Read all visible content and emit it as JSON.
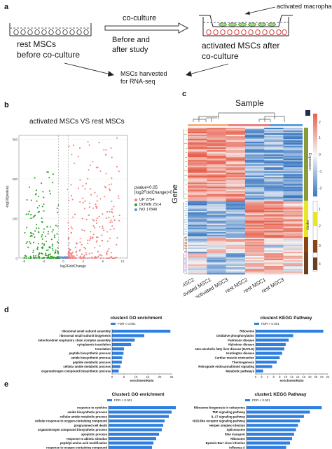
{
  "panels": {
    "a": {
      "letter": "a",
      "rest_label": "rest MSCs\nbefore co-culture",
      "coculture_label": "co-culture",
      "before_after": "Before and\nafter study",
      "activated_macrophages": "activated macrophages",
      "activated_label": "activated MSCs after\nco-culture",
      "harvested": "MSCs harvested\nfor RNA-seq"
    },
    "b": {
      "letter": "b",
      "title": "activated MSCs VS rest MSCs",
      "legend_title": "pvalue<0.05\n|log2FoldChange|>0",
      "legend": [
        {
          "label": "UP 2754",
          "color": "#f08080"
        },
        {
          "label": "DOWN 2514",
          "color": "#2ca02c"
        },
        {
          "label": "NO 17848",
          "color": "#6a8ec8"
        }
      ]
    },
    "c": {
      "letter": "c",
      "title": "Sample",
      "y_label": "Gene",
      "samples": [
        "activated MSC2",
        "activated MSC1",
        "activated MSC3",
        "rest MSC2",
        "rest MSC1",
        "rest MSC3"
      ],
      "expression_label": "Expression",
      "cluster_label": "cluster",
      "scale_ticks": [
        "2",
        "1",
        "0",
        "-1",
        "-2"
      ],
      "cluster_ticks": [
        "1",
        "2",
        "3",
        "4"
      ],
      "colors": {
        "high": "#e8614d",
        "mid": "#f7f7f7",
        "low": "#3a78c2"
      }
    },
    "d": {
      "letter": "d",
      "go": {
        "title": "cluster4 GO enrichment",
        "legend": "FDR < 0.001",
        "xlabel": "enrichmentRatio"
      },
      "kegg": {
        "title": "cluster4 KEGG Pathway",
        "legend": "FDR < 0.001",
        "xlabel": "enrichmentRatio"
      }
    },
    "e": {
      "letter": "e",
      "go": {
        "title": "Cluster1 GO enrichment",
        "legend": "FDR < 0.001",
        "xlabel": "enrichmentRatio"
      },
      "kegg": {
        "title": "cluster1 KEGG Pathway",
        "legend": "FDR < 0.001",
        "xlabel": "enrichmentRatio"
      }
    }
  },
  "chart_data": [
    {
      "id": "volcano",
      "type": "scatter",
      "title": "activated MSCs VS rest MSCs",
      "xlabel": "log2FoldChange",
      "ylabel": "-log10(pvalue)",
      "xlim": [
        -9,
        13
      ],
      "ylim": [
        0,
        310
      ],
      "xticks": [
        -8,
        -4,
        0,
        4,
        8,
        12
      ],
      "yticks": [
        0,
        100,
        200,
        300
      ],
      "series": [
        {
          "name": "UP 2754",
          "color": "#f08080"
        },
        {
          "name": "DOWN 2514",
          "color": "#2ca02c"
        },
        {
          "name": "NO 17848",
          "color": "#6a8ec8"
        }
      ]
    },
    {
      "id": "d-go",
      "type": "bar",
      "orientation": "horizontal",
      "title": "cluster4 GO enrichment",
      "xlabel": "enrichmentRatio",
      "xlim": [
        0,
        25
      ],
      "xticks": [
        0,
        5,
        10,
        15,
        20,
        25
      ],
      "categories": [
        "ribosomal small subunit assembly",
        "ribosomal small subunit biogenesis",
        "mitochondrial respiratory chain complex assembly",
        "cytoplasmic translation",
        "translation",
        "peptide biosynthetic process",
        "amide biosynthetic process",
        "peptide metabolic process",
        "cellular amide metabolic process",
        "organonitrogen compound biosynthetic process"
      ],
      "values": [
        24.5,
        13.5,
        9.5,
        8.0,
        5.0,
        4.8,
        4.3,
        4.1,
        3.5,
        2.8
      ]
    },
    {
      "id": "d-kegg",
      "type": "bar",
      "orientation": "horizontal",
      "title": "cluster4 KEGG Pathway",
      "xlabel": "enrichmentRatio",
      "xlim": [
        0,
        24
      ],
      "xticks": [
        0,
        2,
        4,
        6,
        8,
        10,
        12,
        14,
        16,
        18,
        20,
        22,
        24
      ],
      "categories": [
        "Ribosome",
        "Oxidative phosphorylation",
        "Parkinson disease",
        "Alzheimer disease",
        "Non-alcoholic fatty liver disease (NAFLD)",
        "Huntington disease",
        "Cardiac muscle contraction",
        "Thermogenesis",
        "Retrograde endocannabinoid signaling",
        "Metabolic pathways"
      ],
      "values": [
        22.5,
        12.5,
        11.0,
        10.0,
        9.5,
        8.8,
        8.0,
        7.0,
        5.5,
        2.5
      ]
    },
    {
      "id": "e-go",
      "type": "bar",
      "orientation": "horizontal",
      "title": "Cluster1 GO enrichment",
      "xlabel": "enrichmentRatio",
      "xlim": [
        0,
        2.5
      ],
      "xticks": [
        0,
        0.5,
        1.0,
        1.5,
        2.0,
        2.5
      ],
      "categories": [
        "response to cytokine",
        "amide biosynthetic process",
        "cellular amide metabolic process",
        "cellular response to oxygen-containing compound",
        "programmed cell death",
        "organonitrogen compound biosynthetic process",
        "apoptotic process",
        "response to abiotic stimulus",
        "peptidyl-amino acid modification",
        "response to oxygen-containing compound"
      ],
      "values": [
        2.4,
        2.25,
        2.15,
        2.0,
        1.95,
        1.9,
        1.8,
        1.7,
        1.6,
        1.55
      ]
    },
    {
      "id": "e-kegg",
      "type": "bar",
      "orientation": "horizontal",
      "title": "cluster1 KEGG Pathway",
      "xlabel": "enrichmentRatio",
      "xlim": [
        0,
        4
      ],
      "xticks": [
        0,
        1,
        2,
        3,
        4
      ],
      "categories": [
        "Ribosome biogenesis in eukaryotes",
        "TNF signaling pathway",
        "IL-17 signaling pathway",
        "NOD-like receptor signaling pathway",
        "Herpes simplex infection",
        "Spliceosome",
        "RNA transport",
        "Ribosome",
        "Epstein-Barr virus infection",
        "Influenza A"
      ],
      "values": [
        3.8,
        3.2,
        2.9,
        2.7,
        2.6,
        2.5,
        2.4,
        2.3,
        2.2,
        2.0
      ]
    }
  ]
}
